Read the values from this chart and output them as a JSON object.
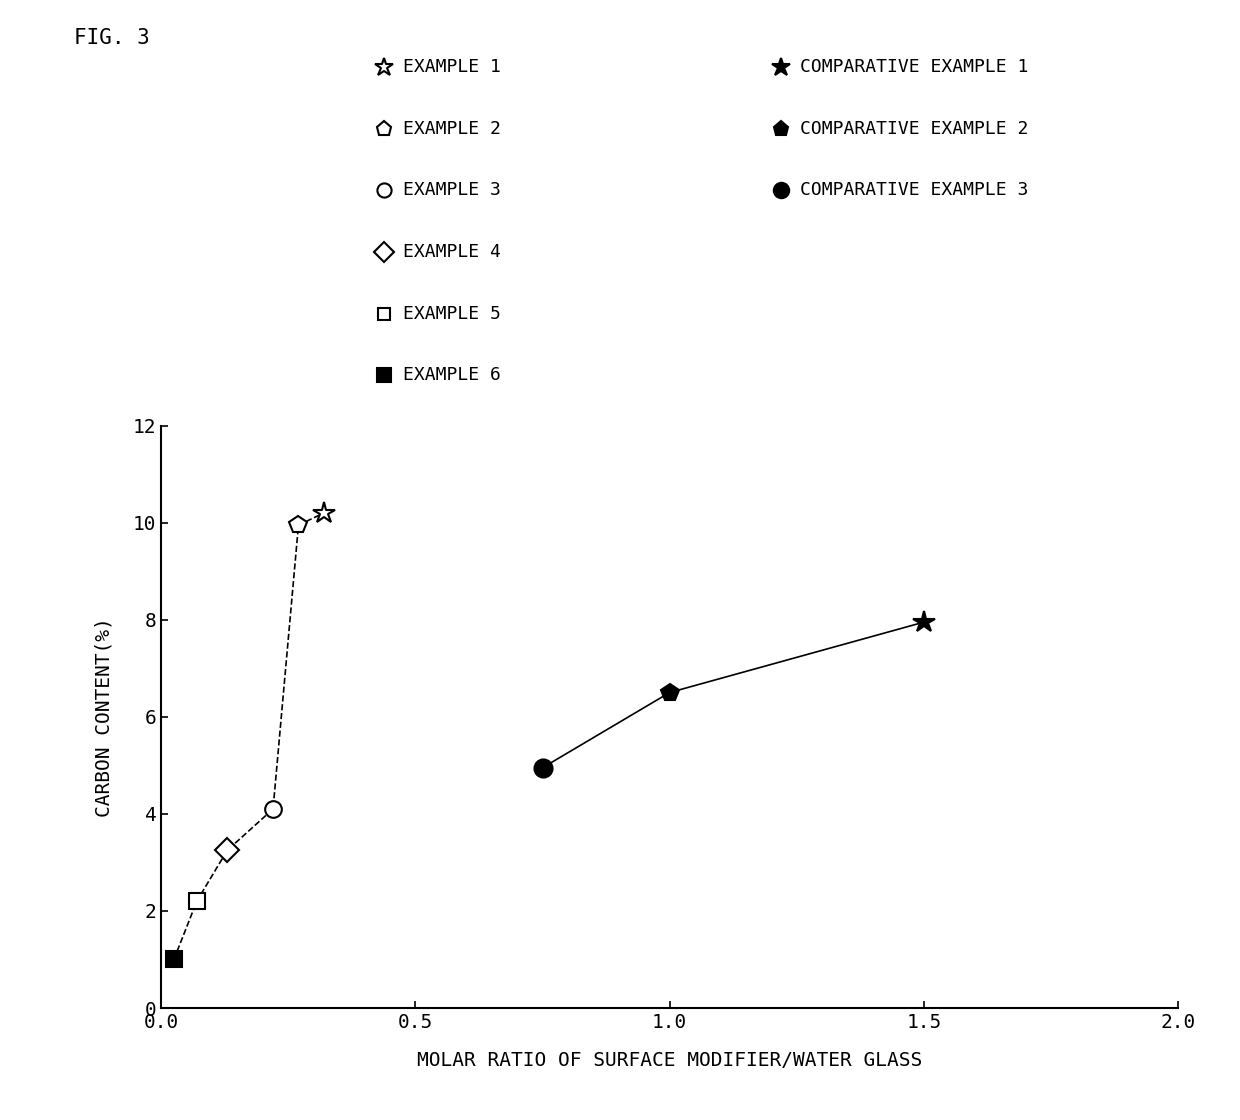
{
  "title": "FIG. 3",
  "xlabel": "MOLAR RATIO OF SURFACE MODIFIER/WATER GLASS",
  "ylabel": "CARBON CONTENT(%)",
  "xlim": [
    0,
    2
  ],
  "ylim": [
    0,
    12
  ],
  "xticks": [
    0,
    0.5,
    1,
    1.5,
    2
  ],
  "yticks": [
    0,
    2,
    4,
    6,
    8,
    10,
    12
  ],
  "series": [
    {
      "label": "EXAMPLE 1",
      "x": [
        0.32
      ],
      "y": [
        10.2
      ],
      "marker": "star",
      "filled": false,
      "markersize": 16
    },
    {
      "label": "EXAMPLE 2",
      "x": [
        0.27
      ],
      "y": [
        9.95
      ],
      "marker": "pentagon",
      "filled": false,
      "markersize": 13
    },
    {
      "label": "EXAMPLE 3",
      "x": [
        0.22
      ],
      "y": [
        4.1
      ],
      "marker": "circle",
      "filled": false,
      "markersize": 12
    },
    {
      "label": "EXAMPLE 4",
      "x": [
        0.13
      ],
      "y": [
        3.25
      ],
      "marker": "diamond",
      "filled": false,
      "markersize": 12
    },
    {
      "label": "EXAMPLE 5",
      "x": [
        0.07
      ],
      "y": [
        2.2
      ],
      "marker": "square",
      "filled": false,
      "markersize": 11
    },
    {
      "label": "EXAMPLE 6",
      "x": [
        0.025
      ],
      "y": [
        1.0
      ],
      "marker": "square",
      "filled": true,
      "markersize": 12
    },
    {
      "label": "COMPARATIVE EXAMPLE 1",
      "x": [
        1.5
      ],
      "y": [
        7.95
      ],
      "marker": "star",
      "filled": true,
      "markersize": 16
    },
    {
      "label": "COMPARATIVE EXAMPLE 2",
      "x": [
        1.0
      ],
      "y": [
        6.5
      ],
      "marker": "pentagon",
      "filled": true,
      "markersize": 13
    },
    {
      "label": "COMPARATIVE EXAMPLE 3",
      "x": [
        0.75
      ],
      "y": [
        4.95
      ],
      "marker": "circle",
      "filled": true,
      "markersize": 13
    }
  ],
  "group1_indices": [
    5,
    4,
    3,
    2,
    1,
    0
  ],
  "group2_indices": [
    8,
    7,
    6
  ],
  "group1_linestyle": "--",
  "group2_linestyle": "-",
  "linewidth": 1.2,
  "background_color": "#ffffff",
  "fontfamily": "monospace",
  "title_fontsize": 15,
  "label_fontsize": 14,
  "tick_fontsize": 14,
  "legend_fontsize": 13
}
